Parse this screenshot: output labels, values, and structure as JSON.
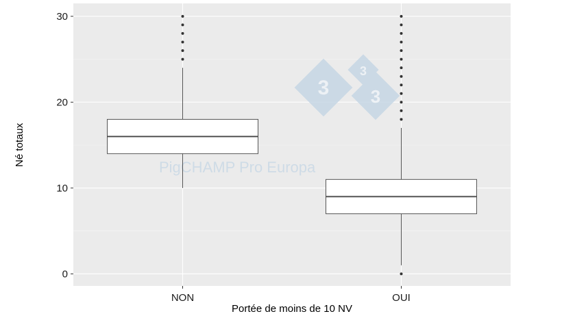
{
  "chart_data": {
    "type": "boxplot",
    "title": "",
    "xlabel": "Portée de moins de 10 NV",
    "ylabel": "Né totaux",
    "ylim": [
      -1.4,
      31.5
    ],
    "yticks": [
      0,
      10,
      20,
      30
    ],
    "grid": true,
    "categories": [
      "NON",
      "OUI"
    ],
    "boxes": [
      {
        "category": "NON",
        "whisker_low": 10,
        "q1": 14,
        "median": 16,
        "q3": 18,
        "whisker_high": 24,
        "outliers": [
          25,
          26,
          27,
          28,
          29,
          30
        ]
      },
      {
        "category": "OUI",
        "whisker_low": 1,
        "q1": 7,
        "median": 9,
        "q3": 11,
        "whisker_high": 17,
        "outliers": [
          0,
          18,
          19,
          20,
          21,
          22,
          23,
          24,
          25,
          26,
          27,
          28,
          29,
          30
        ]
      }
    ],
    "colors": {
      "panel": "#ebebeb",
      "grid": "#ffffff",
      "box_fill": "#ffffff",
      "box_line": "#555555",
      "outlier": "#333333"
    }
  },
  "watermark": {
    "text": "PigCHAMP Pro Europa",
    "logo": "333"
  }
}
